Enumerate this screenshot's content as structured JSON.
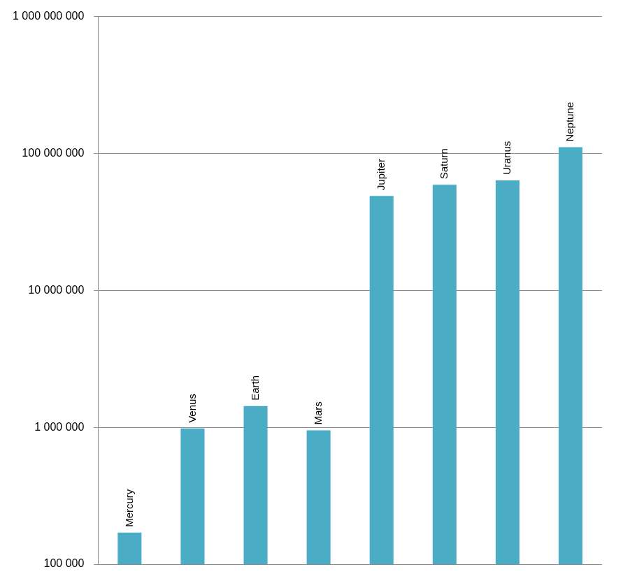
{
  "chart_data": {
    "type": "bar",
    "categories": [
      "Mercury",
      "Venus",
      "Earth",
      "Mars",
      "Jupiter",
      "Saturn",
      "Uranus",
      "Neptune"
    ],
    "values": [
      170000,
      980000,
      1430000,
      950000,
      49000000,
      59000000,
      63500000,
      111000000
    ],
    "color": "#4bacc6",
    "log": "y",
    "ylim": [
      100000,
      1000000000
    ],
    "yticks": [
      {
        "value": 100000,
        "label": "100 000"
      },
      {
        "value": 1000000,
        "label": "1 000 000"
      },
      {
        "value": 10000000,
        "label": "10 000 000"
      },
      {
        "value": 100000000,
        "label": "100 000 000"
      },
      {
        "value": 1000000000,
        "label": "1 000 000 000"
      }
    ],
    "grid": true,
    "tick_labels": "y"
  }
}
